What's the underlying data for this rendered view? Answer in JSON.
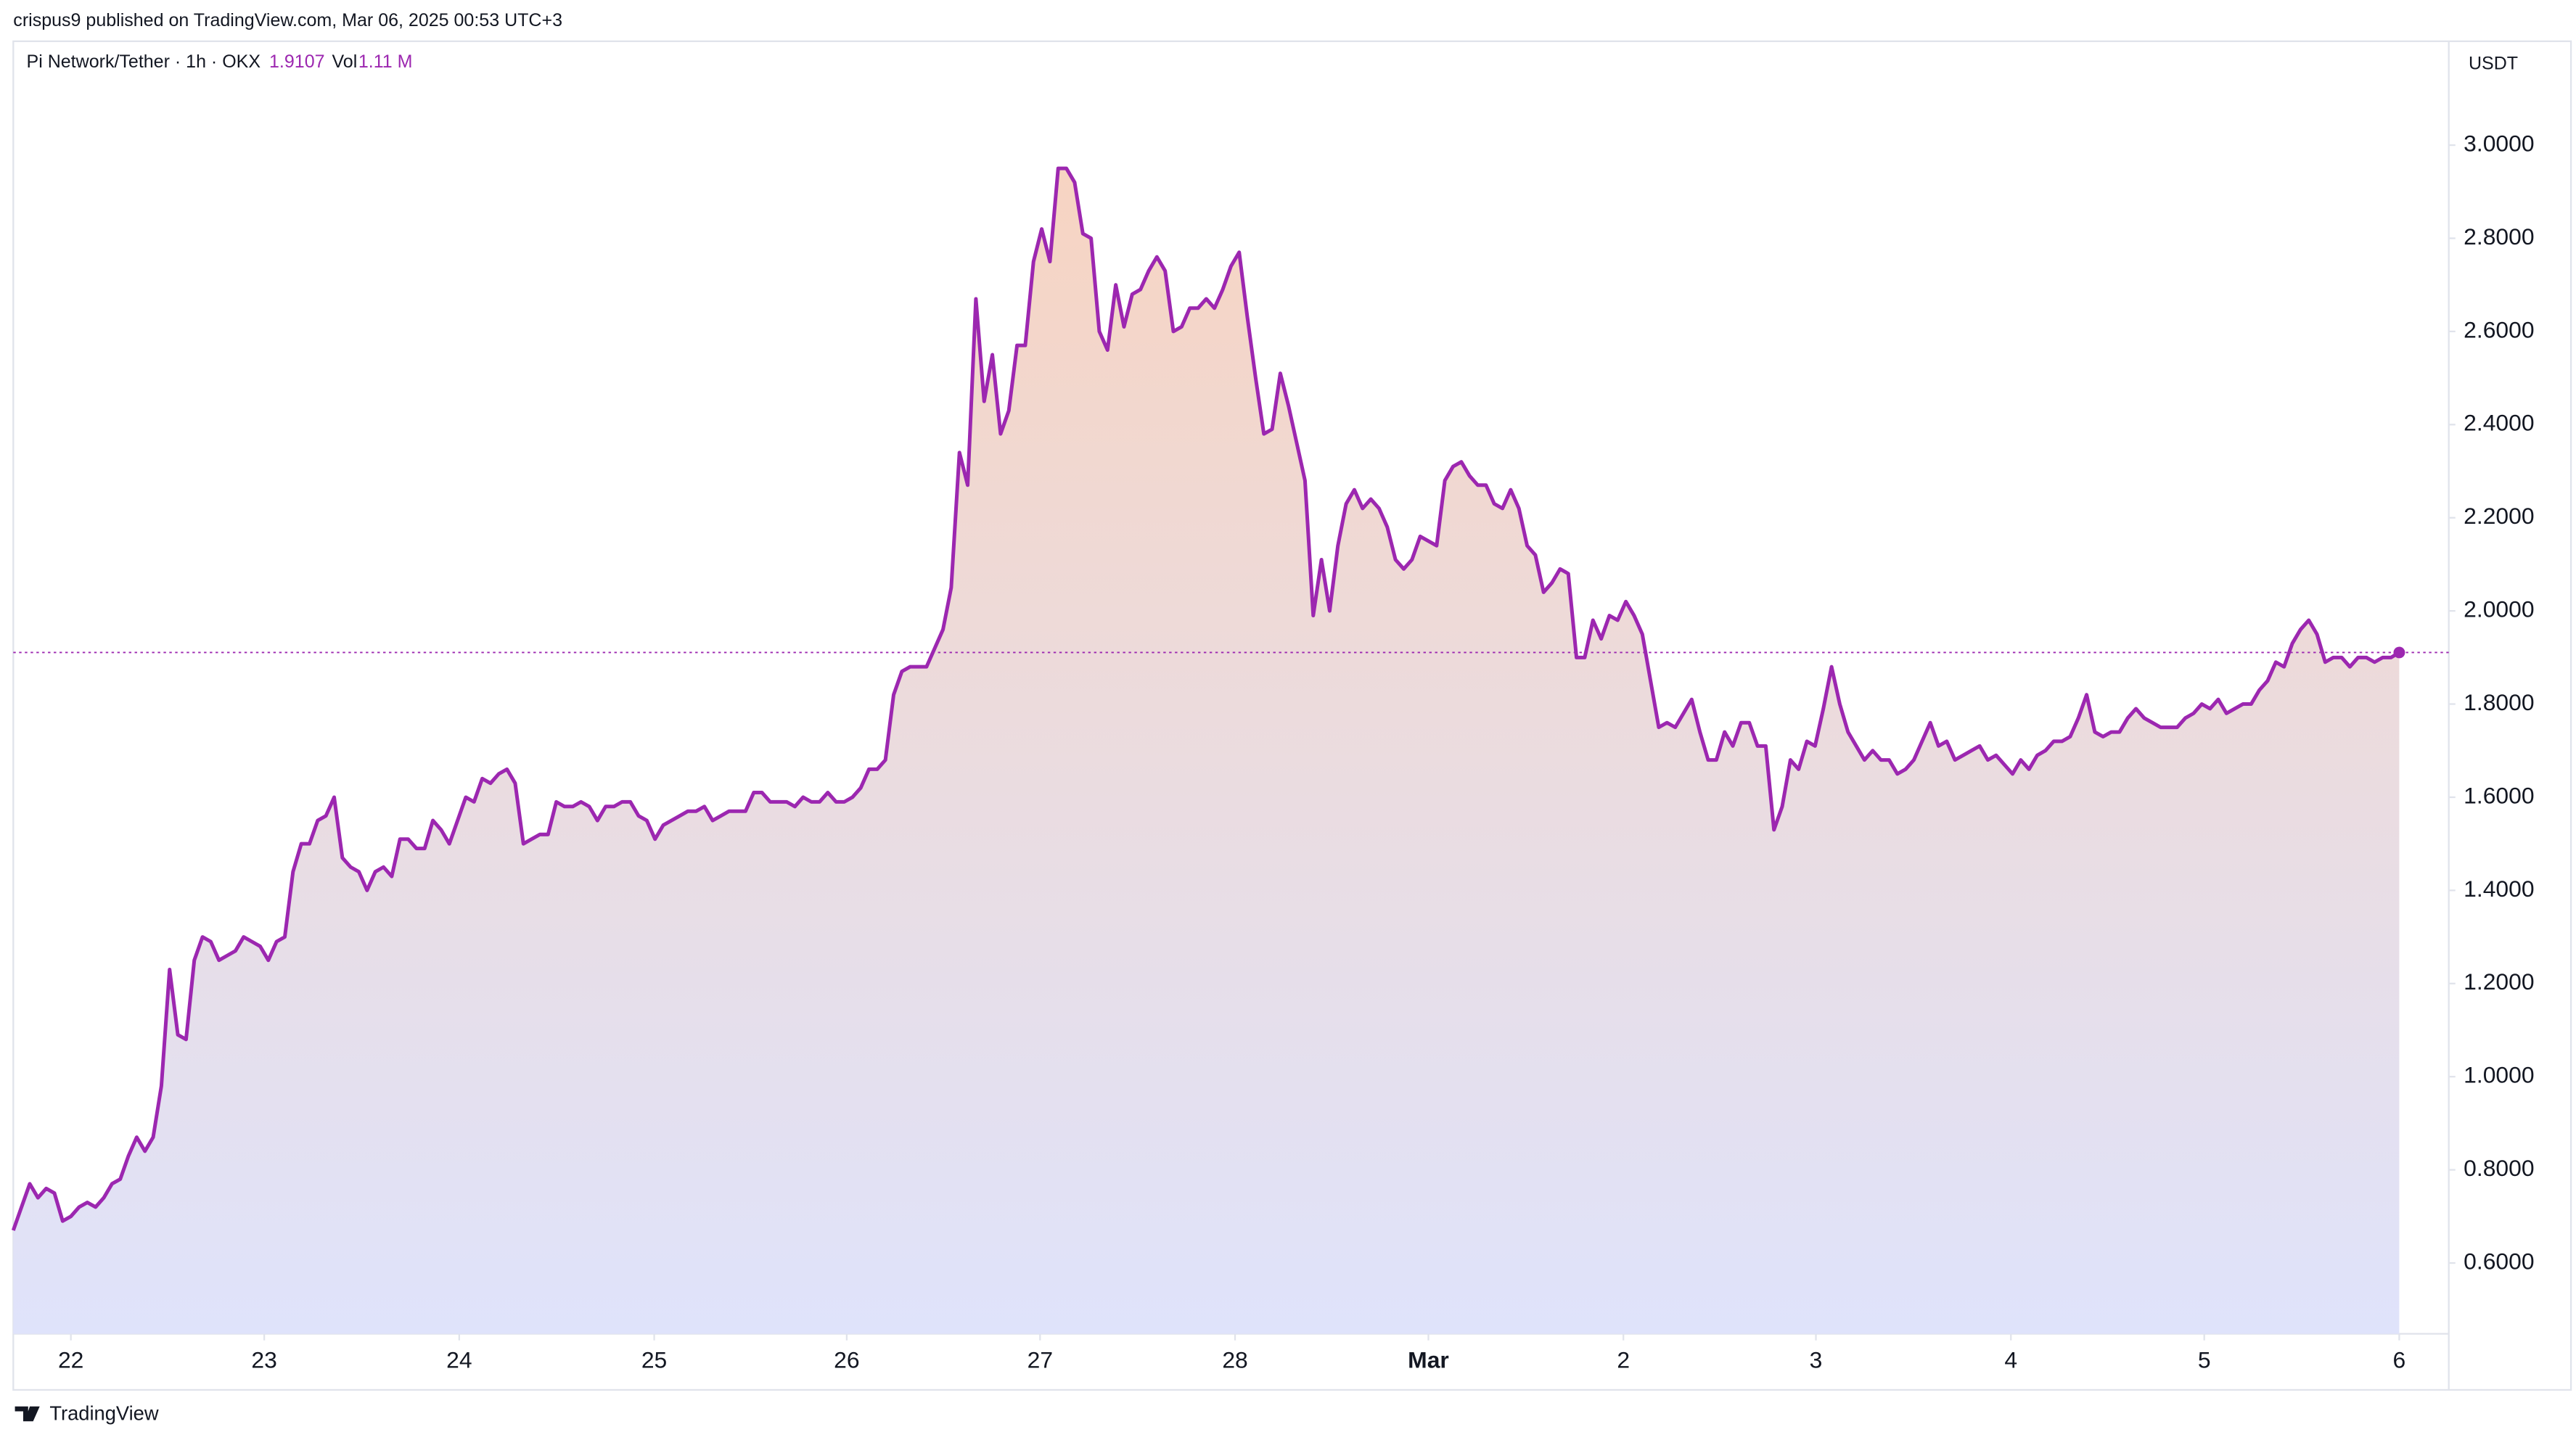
{
  "header": "crispus9 published on TradingView.com, Mar 06, 2025 00:53 UTC+3",
  "footer": "TradingView",
  "chart_data": {
    "type": "area",
    "symbol": "Pi Network/Tether · 1h · OKX",
    "last_price": 1.9107,
    "volume_label": "Vol",
    "volume": "1.11 M",
    "currency": "USDT",
    "color": "#9c27b0",
    "ylim": [
      0.448,
      3.223
    ],
    "yticks": [
      {
        "value": 0.6,
        "label": "0.6000"
      },
      {
        "value": 0.8,
        "label": "0.8000"
      },
      {
        "value": 1.0,
        "label": "1.0000"
      },
      {
        "value": 1.2,
        "label": "1.2000"
      },
      {
        "value": 1.4,
        "label": "1.4000"
      },
      {
        "value": 1.6,
        "label": "1.6000"
      },
      {
        "value": 1.8,
        "label": "1.8000"
      },
      {
        "value": 2.0,
        "label": "2.0000"
      },
      {
        "value": 2.2,
        "label": "2.2000"
      },
      {
        "value": 2.4,
        "label": "2.4000"
      },
      {
        "value": 2.6,
        "label": "2.6000"
      },
      {
        "value": 2.8,
        "label": "2.8000"
      },
      {
        "value": 3.0,
        "label": "3.0000"
      }
    ],
    "xlim": [
      0,
      290
    ],
    "xticks": [
      {
        "value": 7,
        "label": "22"
      },
      {
        "value": 30.5,
        "label": "23"
      },
      {
        "value": 54.2,
        "label": "24"
      },
      {
        "value": 77.9,
        "label": "25"
      },
      {
        "value": 101.3,
        "label": "26"
      },
      {
        "value": 124.8,
        "label": "27"
      },
      {
        "value": 148.5,
        "label": "28"
      },
      {
        "value": 172,
        "label": "Mar"
      },
      {
        "value": 195.7,
        "label": "2"
      },
      {
        "value": 219.1,
        "label": "3"
      },
      {
        "value": 242.8,
        "label": "4"
      },
      {
        "value": 266.3,
        "label": "5"
      },
      {
        "value": 290,
        "label": "6"
      }
    ],
    "values": [
      0.67,
      0.72,
      0.77,
      0.74,
      0.76,
      0.75,
      0.69,
      0.7,
      0.72,
      0.73,
      0.72,
      0.74,
      0.77,
      0.78,
      0.83,
      0.87,
      0.84,
      0.87,
      0.98,
      1.23,
      1.09,
      1.08,
      1.25,
      1.3,
      1.29,
      1.25,
      1.26,
      1.27,
      1.3,
      1.29,
      1.28,
      1.25,
      1.29,
      1.3,
      1.44,
      1.5,
      1.5,
      1.55,
      1.56,
      1.6,
      1.47,
      1.45,
      1.44,
      1.4,
      1.44,
      1.45,
      1.43,
      1.51,
      1.51,
      1.49,
      1.49,
      1.55,
      1.53,
      1.5,
      1.55,
      1.6,
      1.59,
      1.64,
      1.63,
      1.65,
      1.66,
      1.63,
      1.5,
      1.51,
      1.52,
      1.52,
      1.59,
      1.58,
      1.58,
      1.59,
      1.58,
      1.55,
      1.58,
      1.58,
      1.59,
      1.59,
      1.56,
      1.55,
      1.51,
      1.54,
      1.55,
      1.56,
      1.57,
      1.57,
      1.58,
      1.55,
      1.56,
      1.57,
      1.57,
      1.57,
      1.61,
      1.61,
      1.59,
      1.59,
      1.59,
      1.58,
      1.6,
      1.59,
      1.59,
      1.61,
      1.59,
      1.59,
      1.6,
      1.62,
      1.66,
      1.66,
      1.68,
      1.82,
      1.87,
      1.88,
      1.88,
      1.88,
      1.92,
      1.96,
      2.05,
      2.34,
      2.27,
      2.67,
      2.45,
      2.55,
      2.38,
      2.43,
      2.57,
      2.57,
      2.75,
      2.82,
      2.75,
      2.95,
      2.95,
      2.92,
      2.81,
      2.8,
      2.6,
      2.56,
      2.7,
      2.61,
      2.68,
      2.69,
      2.73,
      2.76,
      2.73,
      2.6,
      2.61,
      2.65,
      2.65,
      2.67,
      2.65,
      2.69,
      2.74,
      2.77,
      2.63,
      2.5,
      2.38,
      2.39,
      2.51,
      2.44,
      2.36,
      2.28,
      1.99,
      2.11,
      2.0,
      2.14,
      2.23,
      2.26,
      2.22,
      2.24,
      2.22,
      2.18,
      2.11,
      2.09,
      2.11,
      2.16,
      2.15,
      2.14,
      2.28,
      2.31,
      2.32,
      2.29,
      2.27,
      2.27,
      2.23,
      2.22,
      2.26,
      2.22,
      2.14,
      2.12,
      2.04,
      2.06,
      2.09,
      2.08,
      1.9,
      1.9,
      1.98,
      1.94,
      1.99,
      1.98,
      2.02,
      1.99,
      1.95,
      1.85,
      1.75,
      1.76,
      1.75,
      1.78,
      1.81,
      1.74,
      1.68,
      1.68,
      1.74,
      1.71,
      1.76,
      1.76,
      1.71,
      1.71,
      1.53,
      1.58,
      1.68,
      1.66,
      1.72,
      1.71,
      1.79,
      1.88,
      1.8,
      1.74,
      1.71,
      1.68,
      1.7,
      1.68,
      1.68,
      1.65,
      1.66,
      1.68,
      1.72,
      1.76,
      1.71,
      1.72,
      1.68,
      1.69,
      1.7,
      1.71,
      1.68,
      1.69,
      1.67,
      1.65,
      1.68,
      1.66,
      1.69,
      1.7,
      1.72,
      1.72,
      1.73,
      1.77,
      1.82,
      1.74,
      1.73,
      1.74,
      1.74,
      1.77,
      1.79,
      1.77,
      1.76,
      1.75,
      1.75,
      1.75,
      1.77,
      1.78,
      1.8,
      1.79,
      1.81,
      1.78,
      1.79,
      1.8,
      1.8,
      1.83,
      1.85,
      1.89,
      1.88,
      1.93,
      1.96,
      1.98,
      1.95,
      1.89,
      1.9,
      1.9,
      1.88,
      1.9,
      1.9,
      1.89,
      1.9,
      1.9,
      1.9107
    ]
  }
}
